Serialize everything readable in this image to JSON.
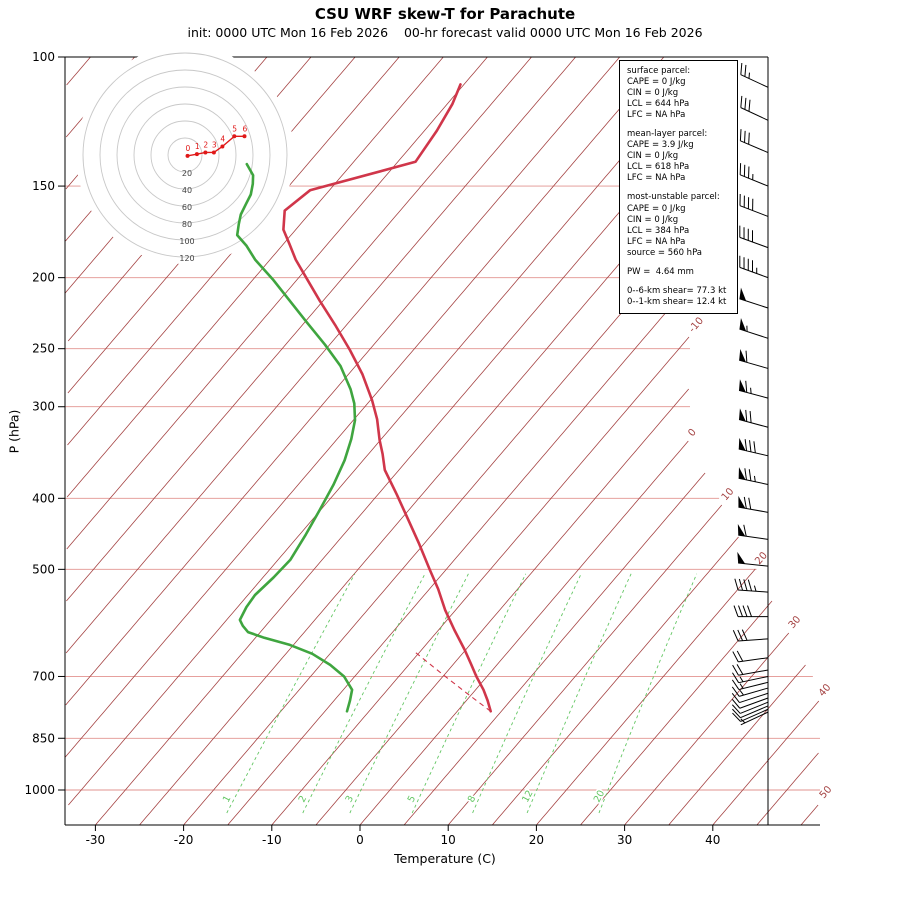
{
  "title": "CSU WRF skew-T for Parachute",
  "subtitle": "init: 0000 UTC Mon 16 Feb 2026    00-hr forecast valid 0000 UTC Mon 16 Feb 2026",
  "axes": {
    "x_label": "Temperature (C)",
    "y_label": "P (hPa)",
    "pressure_ticks": [
      100,
      150,
      200,
      250,
      300,
      400,
      500,
      700,
      850,
      1000
    ],
    "temp_ticks": [
      -30,
      -20,
      -10,
      0,
      10,
      20,
      30,
      40
    ],
    "isotherm_labels": [
      -10,
      0,
      10,
      20,
      30,
      40,
      50
    ],
    "mixing_ratio_labels": [
      1,
      2,
      3,
      5,
      8,
      12,
      20
    ]
  },
  "colors": {
    "isotherm": "#a44242",
    "pressure_gridline": "#e2938f",
    "mixing_ratio": "#63c663",
    "moist_adiabat": "#55bb55",
    "temperature_trace": "#d0364a",
    "dewpoint_trace": "#3fa53f",
    "parcel_trace": "#d0364a",
    "wind_barb": "#000000",
    "hodograph_ring": "#c8c8c8",
    "hodograph_trace": "#e01818",
    "axis": "#000000"
  },
  "info_box": {
    "sections": [
      {
        "lines": [
          "surface parcel:",
          "CAPE = 0 J/kg",
          "CIN = 0 J/kg",
          "LCL = 644 hPa",
          "LFC = NA hPa"
        ]
      },
      {
        "lines": [
          "mean-layer parcel:",
          "CAPE = 3.9 J/kg",
          "CIN = 0 J/kg",
          "LCL = 618 hPa",
          "LFC = NA hPa"
        ]
      },
      {
        "lines": [
          "most-unstable parcel:",
          "CAPE = 0 J/kg",
          "CIN = 0 J/kg",
          "LCL = 384 hPa",
          "LFC = NA hPa",
          "source = 560 hPa"
        ]
      },
      {
        "lines": [
          "PW =  4.64 mm"
        ]
      },
      {
        "lines": [
          "0--6-km shear= 77.3 kt",
          "0--1-km shear= 12.4 kt"
        ]
      }
    ]
  },
  "chart_data": {
    "type": "line",
    "title": "CSU WRF skew-T for Parachute",
    "x_axis": {
      "label": "Temperature (C)",
      "ticks": [
        -30,
        -20,
        -10,
        0,
        10,
        20,
        30,
        40
      ]
    },
    "y_axis": {
      "label": "P (hPa)",
      "scale": "log",
      "ticks": [
        100,
        150,
        200,
        250,
        300,
        400,
        500,
        700,
        850,
        1000
      ],
      "range": [
        100,
        1116
      ]
    },
    "series": [
      {
        "name": "temperature",
        "pressure_hPa": [
          781,
          755,
          730,
          700,
          672,
          644,
          605,
          568,
          532,
          501,
          462,
          428,
          395,
          366,
          348,
          333,
          312,
          294,
          271,
          251,
          232,
          215,
          201,
          189,
          180,
          172,
          162,
          152,
          139,
          126,
          116,
          109
        ],
        "value_C": [
          3.8,
          2.4,
          0.9,
          -1.2,
          -3.1,
          -5.1,
          -8.2,
          -11.2,
          -14.0,
          -16.8,
          -20.5,
          -24.1,
          -27.9,
          -31.6,
          -33.4,
          -35.1,
          -37.4,
          -39.8,
          -43.4,
          -47.2,
          -51.3,
          -55.4,
          -58.9,
          -62.1,
          -64.3,
          -66.4,
          -68.1,
          -67.2,
          -58.0,
          -58.6,
          -59.4,
          -60.4
        ]
      },
      {
        "name": "dewpoint",
        "pressure_hPa": [
          781,
          755,
          730,
          700,
          675,
          652,
          634,
          620,
          609,
          597,
          586,
          563,
          542,
          513,
          485,
          448,
          415,
          383,
          355,
          332,
          313,
          297,
          284,
          264,
          247,
          230,
          215,
          201,
          189,
          181,
          175,
          169,
          164,
          159,
          154,
          149,
          145,
          140
        ],
        "value_C": [
          -12.5,
          -13.2,
          -14.0,
          -16.2,
          -18.9,
          -22.0,
          -25.4,
          -29.0,
          -31.4,
          -32.6,
          -33.5,
          -34.0,
          -34.2,
          -33.8,
          -33.6,
          -34.3,
          -35.1,
          -36.0,
          -37.1,
          -38.4,
          -39.8,
          -41.5,
          -43.3,
          -46.7,
          -50.5,
          -54.8,
          -58.8,
          -62.8,
          -66.7,
          -69.0,
          -71.1,
          -72.0,
          -72.7,
          -73.1,
          -73.5,
          -74.3,
          -75.1,
          -76.9
        ]
      }
    ],
    "parcel_trace": {
      "start_pressure_hPa": 781,
      "start_temp_C": 3.8,
      "lcl_hPa": 644,
      "style": "dashed"
    },
    "wind_barbs_p_dir_spd_kt": [
      [
        110,
        295,
        25
      ],
      [
        122,
        295,
        28
      ],
      [
        135,
        293,
        30
      ],
      [
        150,
        292,
        35
      ],
      [
        165,
        291,
        38
      ],
      [
        182,
        290,
        40
      ],
      [
        200,
        290,
        45
      ],
      [
        220,
        288,
        50
      ],
      [
        242,
        288,
        55
      ],
      [
        266,
        286,
        60
      ],
      [
        292,
        285,
        65
      ],
      [
        320,
        285,
        72
      ],
      [
        350,
        283,
        78
      ],
      [
        383,
        282,
        75
      ],
      [
        418,
        280,
        68
      ],
      [
        455,
        278,
        60
      ],
      [
        495,
        276,
        52
      ],
      [
        537,
        274,
        45
      ],
      [
        580,
        270,
        38
      ],
      [
        622,
        266,
        30
      ],
      [
        660,
        262,
        22
      ],
      [
        686,
        260,
        18
      ],
      [
        700,
        258,
        16
      ],
      [
        713,
        256,
        14
      ],
      [
        726,
        254,
        13
      ],
      [
        738,
        252,
        12
      ],
      [
        749,
        250,
        11
      ],
      [
        759,
        248,
        10
      ],
      [
        768,
        247,
        9
      ],
      [
        776,
        246,
        8
      ],
      [
        783,
        245,
        7
      ]
    ],
    "hodograph": {
      "ring_interval_kt": 20,
      "ring_labels_kt": [
        20,
        40,
        60,
        80,
        100,
        120
      ],
      "points": [
        {
          "km": 0,
          "u_kt": 3,
          "v_kt": -1
        },
        {
          "km": 1,
          "u_kt": 14,
          "v_kt": 1
        },
        {
          "km": 2,
          "u_kt": 24,
          "v_kt": 3
        },
        {
          "km": 3,
          "u_kt": 34,
          "v_kt": 3
        },
        {
          "km": 4,
          "u_kt": 44,
          "v_kt": 10
        },
        {
          "km": 5,
          "u_kt": 58,
          "v_kt": 22
        },
        {
          "km": 6,
          "u_kt": 70,
          "v_kt": 22
        }
      ]
    },
    "skew_t_background": {
      "isotherm_step_C": 5,
      "isotherm_edge_labels_C": [
        -10,
        0,
        10,
        20,
        30,
        40,
        50
      ],
      "mixing_ratio_lines_gkg": [
        1,
        2,
        3,
        5,
        8,
        12,
        20
      ],
      "moist_adiabats_T1000_C": [
        -20,
        -10,
        0,
        10,
        20,
        30,
        40
      ]
    }
  }
}
